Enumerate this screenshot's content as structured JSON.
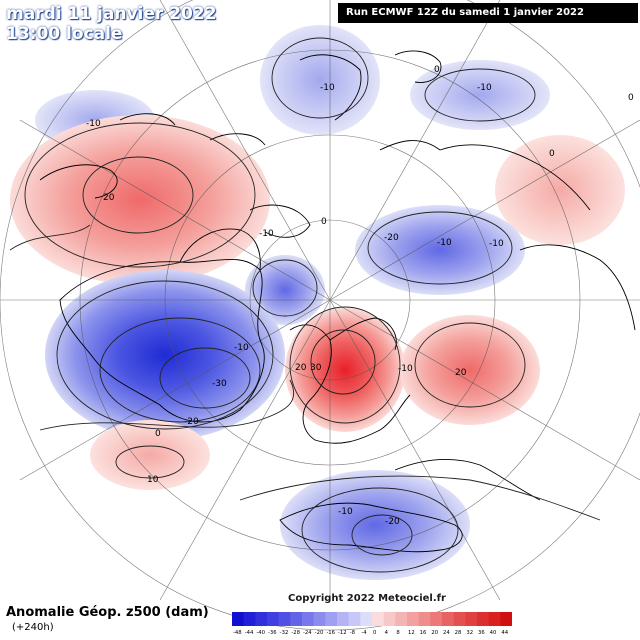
{
  "header": {
    "date": "mardi 11 janvier 2022",
    "local_time": "13:00 locale",
    "run_info": "Run ECMWF 12Z du samedi 1 janvier 2022"
  },
  "footer": {
    "title": "Anomalie Géop. z500 (dam)",
    "lead_time": "(+240h)",
    "copyright": "Copyright 2022 Meteociel.fr"
  },
  "colorbar": {
    "ticks": [
      "-48",
      "-44",
      "-40",
      "-36",
      "-32",
      "-28",
      "-24",
      "-20",
      "-16",
      "-12",
      "-8",
      "-4",
      "0",
      "4",
      "8",
      "12",
      "16",
      "20",
      "24",
      "28",
      "32",
      "36",
      "40",
      "44"
    ]
  },
  "contour_labels": [
    {
      "id": "label-0-north-pacific",
      "text": "0"
    },
    {
      "id": "label-minus10-alaska",
      "text": "-10"
    },
    {
      "id": "label-minus10-siberia",
      "text": "-10"
    },
    {
      "id": "label-0-east-siberia",
      "text": "0"
    },
    {
      "id": "label-minus10-kamchatka",
      "text": "-10"
    },
    {
      "id": "label-0-far-east",
      "text": "0"
    },
    {
      "id": "label-minus10-west-pacific",
      "text": "-10"
    },
    {
      "id": "label-20-north-pacific",
      "text": "20"
    },
    {
      "id": "label-minus10-arctic",
      "text": "-10"
    },
    {
      "id": "label-0-arctic",
      "text": "0"
    },
    {
      "id": "label-minus20-central-siberia",
      "text": "-20"
    },
    {
      "id": "label-minus10-central-siberia",
      "text": "-10"
    },
    {
      "id": "label-minus10-canada",
      "text": "-10"
    },
    {
      "id": "label-minus30-labrador",
      "text": "-30"
    },
    {
      "id": "label-minus20-labrador",
      "text": "-20"
    },
    {
      "id": "label-20-europe",
      "text": "20"
    },
    {
      "id": "label-30-europe",
      "text": "30"
    },
    {
      "id": "label-minus10-russia",
      "text": "-10"
    },
    {
      "id": "label-20-kazakhstan",
      "text": "20"
    },
    {
      "id": "label-0-atlantic",
      "text": "0"
    },
    {
      "id": "label-10-atlantic",
      "text": "10"
    },
    {
      "id": "label-minus10-mediterranean",
      "text": "-10"
    },
    {
      "id": "label-minus20-mediterranean",
      "text": "-20"
    }
  ],
  "colors": {
    "positive_strong": "#e8202a",
    "positive_light": "#f6c7c4",
    "negative_strong": "#2530d8",
    "negative_light": "#c6cbf1",
    "land_line": "#000000"
  }
}
